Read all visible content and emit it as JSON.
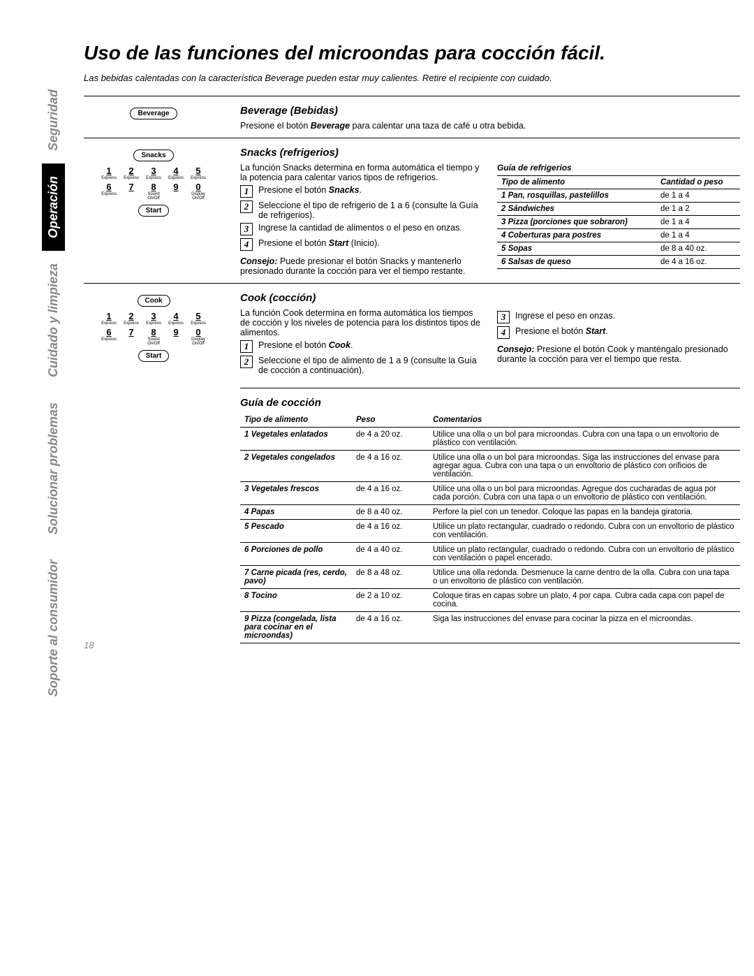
{
  "page_number": "18",
  "heading": "Uso de las funciones del microondas para cocción fácil.",
  "warning": "Las bebidas calentadas con la característica Beverage pueden estar muy calientes. Retire el recipiente con cuidado.",
  "tabs": {
    "seguridad": "Seguridad",
    "operacion": "Operación",
    "cuidado": "Cuidado y limpieza",
    "solucionar": "Solucionar problemas",
    "soporte": "Soporte al consumidor"
  },
  "keypad": {
    "beverage_btn": "Beverage",
    "snacks_btn": "Snacks",
    "cook_btn": "Cook",
    "start_btn": "Start",
    "numbers": [
      "1",
      "2",
      "3",
      "4",
      "5",
      "6",
      "7",
      "8",
      "9",
      "0"
    ],
    "subs": [
      "Express",
      "Express",
      "Express",
      "Express",
      "Express",
      "Express",
      "",
      "Sound On/Off",
      "",
      "Display On/Off"
    ]
  },
  "beverage": {
    "title": "Beverage (Bebidas)",
    "text_pre": "Presione el botón ",
    "text_btn": "Beverage",
    "text_post": " para calentar una taza de café u otra bebida."
  },
  "snacks": {
    "title": "Snacks (refrigerios)",
    "intro": "La función Snacks determina en forma automática el tiempo y la potencia para calentar varios tipos de refrigerios.",
    "steps": [
      {
        "n": "1",
        "pre": "Presione el botón ",
        "b": "Snacks",
        "post": "."
      },
      {
        "n": "2",
        "pre": "Seleccione el tipo de refrigerio de 1 a 6 (consulte la Guía de refrigerios).",
        "b": "",
        "post": ""
      },
      {
        "n": "3",
        "pre": "Ingrese la cantidad de alimentos o el peso en onzas.",
        "b": "",
        "post": ""
      },
      {
        "n": "4",
        "pre": "Presione el botón ",
        "b": "Start",
        "post": " (Inicio)."
      }
    ],
    "consejo_pre": "Consejo:",
    "consejo_text": " Puede presionar el botón Snacks y mantenerlo presionado durante la cocción para ver el tiempo restante.",
    "guide_title": "Guía de refrigerios",
    "guide_headers": {
      "tipo": "Tipo de alimento",
      "cant": "Cantidad o peso"
    },
    "guide_rows": [
      {
        "name": "1 Pan, rosquillas, pastelillos",
        "qty": "de 1 a 4"
      },
      {
        "name": "2 Sándwiches",
        "qty": "de 1 a 2"
      },
      {
        "name": "3 Pizza (porciones que sobraron)",
        "qty": "de 1 a 4"
      },
      {
        "name": "4 Coberturas para postres",
        "qty": "de 1 a 4"
      },
      {
        "name": "5 Sopas",
        "qty": "de 8 a 40 oz."
      },
      {
        "name": "6 Salsas de queso",
        "qty": "de 4 a 16 oz."
      }
    ]
  },
  "cook": {
    "title": "Cook (cocción)",
    "intro": "La función Cook determina en forma automática los tiempos de cocción y los niveles de potencia para los distintos tipos de alimentos.",
    "steps_left": [
      {
        "n": "1",
        "pre": "Presione el botón ",
        "b": "Cook",
        "post": "."
      },
      {
        "n": "2",
        "pre": "Seleccione el tipo de alimento de 1 a 9 (consulte la Guía de cocción a continuación).",
        "b": "",
        "post": ""
      }
    ],
    "steps_right": [
      {
        "n": "3",
        "pre": "Ingrese el peso en onzas.",
        "b": "",
        "post": ""
      },
      {
        "n": "4",
        "pre": "Presione el botón ",
        "b": "Start",
        "post": "."
      }
    ],
    "consejo_pre": "Consejo:",
    "consejo_text": " Presione el botón Cook y manténgalo presionado durante la cocción para ver el tiempo que resta.",
    "guide_title": "Guía de cocción",
    "guide_headers": {
      "tipo": "Tipo de alimento",
      "peso": "Peso",
      "com": "Comentarios"
    },
    "guide_rows": [
      {
        "name": "1 Vegetales enlatados",
        "peso": "de 4 a 20 oz.",
        "com": "Utilice una olla o un bol para microondas. Cubra con una tapa o un envoltorio de plástico con ventilación."
      },
      {
        "name": "2 Vegetales congelados",
        "peso": "de 4 a 16 oz.",
        "com": "Utilice una olla o un bol para microondas. Siga las instrucciones del envase para agregar agua. Cubra con una tapa o un envoltorio de plástico con orificios de ventilación."
      },
      {
        "name": "3 Vegetales frescos",
        "peso": "de 4 a 16 oz.",
        "com": "Utilice una olla o un bol para microondas. Agregue dos cucharadas de agua por cada porción. Cubra con una tapa o un envoltorio de plástico con ventilación."
      },
      {
        "name": "4 Papas",
        "peso": "de 8 a 40 oz.",
        "com": "Perfore la piel con un tenedor. Coloque las papas en la bandeja giratoria."
      },
      {
        "name": "5 Pescado",
        "peso": "de 4 a 16 oz.",
        "com": "Utilice un plato rectangular, cuadrado o redondo. Cubra con un envoltorio de plástico con ventilación."
      },
      {
        "name": "6 Porciones de pollo",
        "peso": "de 4 a 40 oz.",
        "com": "Utilice un plato rectangular, cuadrado o redondo. Cubra con un envoltorio de plástico con ventilación o papel encerado."
      },
      {
        "name": "7 Carne picada (res, cerdo, pavo)",
        "peso": "de 8 a 48 oz.",
        "com": "Utilice una olla redonda. Desmenuce la carne dentro de la olla. Cubra con una tapa o un envoltorio de plástico con ventilación."
      },
      {
        "name": "8 Tocino",
        "peso": "de 2 a 10 oz.",
        "com": "Coloque tiras en capas sobre un plato, 4 por capa. Cubra cada capa con papel de cocina."
      },
      {
        "name": "9 Pizza (congelada, lista para cocinar en el microondas)",
        "peso": "de 4 a 16 oz.",
        "com": "Siga las instrucciones del envase para cocinar la pizza en el microondas."
      }
    ]
  }
}
